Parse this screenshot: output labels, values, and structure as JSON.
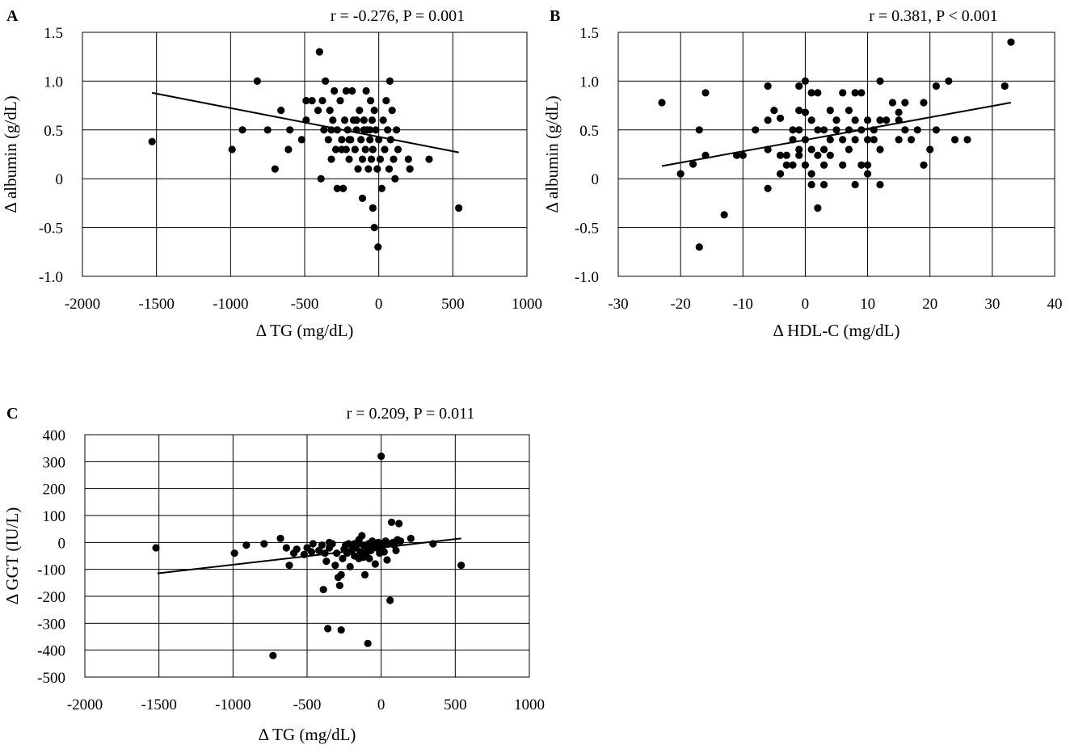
{
  "chart_data": [
    {
      "id": "A",
      "type": "scatter",
      "panel_label": "A",
      "title": "r = -0.276, P = 0.001",
      "xlabel": "Δ TG (mg/dL)",
      "ylabel": "Δ albumin (g/dL)",
      "xlim": [
        -2000,
        1000
      ],
      "ylim": [
        -1.0,
        1.5
      ],
      "x_ticks": [
        -2000,
        -1500,
        -1000,
        -500,
        0,
        500,
        1000
      ],
      "x_tick_labels": [
        "-2000",
        "-1500",
        "-1000",
        "-500",
        "0",
        "500",
        "1000"
      ],
      "y_ticks": [
        1.5,
        1.0,
        0.5,
        0,
        -0.5,
        -1.0
      ],
      "y_tick_labels": [
        "1.5",
        "1.0",
        "0.5",
        "0",
        "-0.5",
        "-1.0"
      ],
      "grid": true,
      "trendline": {
        "x": [
          -1530,
          540
        ],
        "y": [
          0.88,
          0.27
        ]
      },
      "points": [
        [
          -1530,
          0.38
        ],
        [
          -990,
          0.3
        ],
        [
          -920,
          0.5
        ],
        [
          -820,
          1.0
        ],
        [
          -750,
          0.5
        ],
        [
          -700,
          0.1
        ],
        [
          -660,
          0.7
        ],
        [
          -610,
          0.3
        ],
        [
          -600,
          0.5
        ],
        [
          -520,
          0.4
        ],
        [
          -490,
          0.6
        ],
        [
          -490,
          0.8
        ],
        [
          -450,
          0.8
        ],
        [
          -410,
          0.7
        ],
        [
          -400,
          1.3
        ],
        [
          -380,
          0.8
        ],
        [
          -370,
          0.5
        ],
        [
          -390,
          0.0
        ],
        [
          -360,
          1.0
        ],
        [
          -340,
          0.4
        ],
        [
          -330,
          0.7
        ],
        [
          -320,
          0.5
        ],
        [
          -310,
          0.6
        ],
        [
          -300,
          0.9
        ],
        [
          -290,
          0.3
        ],
        [
          -280,
          -0.1
        ],
        [
          -280,
          0.5
        ],
        [
          -260,
          0.8
        ],
        [
          -250,
          0.4
        ],
        [
          -240,
          -0.1
        ],
        [
          -230,
          0.6
        ],
        [
          -220,
          0.3
        ],
        [
          -220,
          0.9
        ],
        [
          -210,
          0.5
        ],
        [
          -200,
          0.2
        ],
        [
          -190,
          0.4
        ],
        [
          -180,
          0.9
        ],
        [
          -170,
          0.6
        ],
        [
          -160,
          0.3
        ],
        [
          -150,
          0.5
        ],
        [
          -140,
          0.1
        ],
        [
          -130,
          0.7
        ],
        [
          -120,
          0.4
        ],
        [
          -110,
          -0.2
        ],
        [
          -110,
          0.2
        ],
        [
          -100,
          0.6
        ],
        [
          -90,
          0.3
        ],
        [
          -85,
          0.9
        ],
        [
          -80,
          0.5
        ],
        [
          -70,
          0.1
        ],
        [
          -60,
          0.4
        ],
        [
          -55,
          0.8
        ],
        [
          -50,
          0.2
        ],
        [
          -45,
          0.6
        ],
        [
          -40,
          0.3
        ],
        [
          -30,
          -0.5
        ],
        [
          -30,
          0.7
        ],
        [
          -20,
          0.5
        ],
        [
          -10,
          0.1
        ],
        [
          -5,
          -0.7
        ],
        [
          0,
          0.4
        ],
        [
          10,
          0.2
        ],
        [
          20,
          -0.1
        ],
        [
          30,
          0.6
        ],
        [
          40,
          0.3
        ],
        [
          50,
          0.8
        ],
        [
          60,
          0.5
        ],
        [
          70,
          0.1
        ],
        [
          75,
          1.0
        ],
        [
          80,
          0.4
        ],
        [
          90,
          0.7
        ],
        [
          100,
          0.2
        ],
        [
          110,
          0.0
        ],
        [
          120,
          0.5
        ],
        [
          130,
          0.3
        ],
        [
          200,
          0.2
        ],
        [
          210,
          0.1
        ],
        [
          340,
          0.2
        ],
        [
          540,
          -0.3
        ],
        [
          -40,
          -0.3
        ],
        [
          -100,
          0.5
        ],
        [
          -150,
          0.6
        ],
        [
          -200,
          0.4
        ],
        [
          -60,
          0.5
        ],
        [
          -250,
          0.3
        ],
        [
          -320,
          0.2
        ]
      ]
    },
    {
      "id": "B",
      "type": "scatter",
      "panel_label": "B",
      "title": "r = 0.381, P < 0.001",
      "xlabel": "Δ HDL-C (mg/dL)",
      "ylabel": "Δ albumin (g/dL)",
      "xlim": [
        -30,
        40
      ],
      "ylim": [
        -1.0,
        1.5
      ],
      "x_ticks": [
        -30,
        -20,
        -10,
        0,
        10,
        20,
        30,
        40
      ],
      "x_tick_labels": [
        "-30",
        "-20",
        "-10",
        "0",
        "10",
        "20",
        "30",
        "40"
      ],
      "y_ticks": [
        1.5,
        1.0,
        0.5,
        0,
        -0.5,
        -1.0
      ],
      "y_tick_labels": [
        "1.5",
        "1.0",
        "0.5",
        "0",
        "-0.5",
        "-1.0"
      ],
      "grid": true,
      "trendline": {
        "x": [
          -23,
          33
        ],
        "y": [
          0.13,
          0.78
        ]
      },
      "points": [
        [
          -23,
          0.78
        ],
        [
          -20,
          0.05
        ],
        [
          -18,
          0.15
        ],
        [
          -17,
          0.5
        ],
        [
          -17,
          -0.7
        ],
        [
          -16,
          0.88
        ],
        [
          -16,
          0.24
        ],
        [
          -13,
          -0.37
        ],
        [
          -11,
          0.24
        ],
        [
          -10,
          0.24
        ],
        [
          -8,
          0.5
        ],
        [
          -6,
          0.95
        ],
        [
          -6,
          0.6
        ],
        [
          -6,
          0.3
        ],
        [
          -6,
          -0.1
        ],
        [
          -5,
          0.7
        ],
        [
          -4,
          0.62
        ],
        [
          -4,
          0.24
        ],
        [
          -4,
          0.05
        ],
        [
          -3,
          0.14
        ],
        [
          -3,
          0.24
        ],
        [
          -2,
          0.4
        ],
        [
          -2,
          0.5
        ],
        [
          -2,
          0.14
        ],
        [
          -1,
          0.95
        ],
        [
          -1,
          0.7
        ],
        [
          -1,
          0.5
        ],
        [
          -1,
          0.3
        ],
        [
          -1,
          0.24
        ],
        [
          0,
          1.0
        ],
        [
          0,
          0.68
        ],
        [
          0,
          0.4
        ],
        [
          0,
          0.14
        ],
        [
          1,
          0.88
        ],
        [
          1,
          0.6
        ],
        [
          1,
          0.3
        ],
        [
          1,
          0.05
        ],
        [
          1,
          -0.06
        ],
        [
          2,
          0.88
        ],
        [
          2,
          0.5
        ],
        [
          2,
          0.24
        ],
        [
          2,
          -0.3
        ],
        [
          3,
          0.5
        ],
        [
          3,
          0.3
        ],
        [
          3,
          0.14
        ],
        [
          3,
          -0.06
        ],
        [
          4,
          0.7
        ],
        [
          4,
          0.4
        ],
        [
          4,
          0.24
        ],
        [
          5,
          0.6
        ],
        [
          5,
          0.5
        ],
        [
          6,
          0.88
        ],
        [
          6,
          0.4
        ],
        [
          6,
          0.14
        ],
        [
          7,
          0.7
        ],
        [
          7,
          0.5
        ],
        [
          7,
          0.3
        ],
        [
          8,
          0.88
        ],
        [
          8,
          0.6
        ],
        [
          8,
          0.4
        ],
        [
          8,
          -0.06
        ],
        [
          9,
          0.88
        ],
        [
          9,
          0.5
        ],
        [
          9,
          0.14
        ],
        [
          10,
          0.6
        ],
        [
          10,
          0.4
        ],
        [
          10,
          0.05
        ],
        [
          10,
          0.14
        ],
        [
          11,
          0.5
        ],
        [
          11,
          0.4
        ],
        [
          12,
          1.0
        ],
        [
          12,
          0.6
        ],
        [
          12,
          0.3
        ],
        [
          12,
          -0.06
        ],
        [
          13,
          0.6
        ],
        [
          14,
          0.78
        ],
        [
          15,
          0.68
        ],
        [
          15,
          0.6
        ],
        [
          15,
          0.4
        ],
        [
          16,
          0.78
        ],
        [
          16,
          0.5
        ],
        [
          17,
          0.4
        ],
        [
          18,
          0.5
        ],
        [
          19,
          0.78
        ],
        [
          19,
          0.14
        ],
        [
          20,
          0.3
        ],
        [
          21,
          0.95
        ],
        [
          21,
          0.5
        ],
        [
          23,
          1.0
        ],
        [
          24,
          0.4
        ],
        [
          26,
          0.4
        ],
        [
          32,
          0.95
        ],
        [
          33,
          1.4
        ]
      ]
    },
    {
      "id": "C",
      "type": "scatter",
      "panel_label": "C",
      "title": "r = 0.209, P = 0.011",
      "xlabel": "Δ TG (mg/dL)",
      "ylabel": "Δ GGT (IU/L)",
      "xlim": [
        -2000,
        1000
      ],
      "ylim": [
        -500,
        400
      ],
      "x_ticks": [
        -2000,
        -1500,
        -1000,
        -500,
        0,
        500,
        1000
      ],
      "x_tick_labels": [
        "-2000",
        "-1500",
        "-1000",
        "-500",
        "0",
        "500",
        "1000"
      ],
      "y_ticks": [
        400,
        300,
        200,
        100,
        0,
        -100,
        -200,
        -300,
        -400,
        -500
      ],
      "y_tick_labels": [
        "400",
        "300",
        "200",
        "100",
        "0",
        "-100",
        "-200",
        "-300",
        "-400",
        "-500"
      ],
      "grid": true,
      "trendline": {
        "x": [
          -1510,
          540
        ],
        "y": [
          -115,
          15
        ]
      },
      "points": [
        [
          -1520,
          -20
        ],
        [
          -990,
          -40
        ],
        [
          -910,
          -10
        ],
        [
          -790,
          -5
        ],
        [
          -730,
          -420
        ],
        [
          -680,
          15
        ],
        [
          -640,
          -20
        ],
        [
          -620,
          -85
        ],
        [
          -590,
          -40
        ],
        [
          -570,
          -25
        ],
        [
          -520,
          -45
        ],
        [
          -500,
          -20
        ],
        [
          -470,
          -35
        ],
        [
          -460,
          -5
        ],
        [
          -420,
          -30
        ],
        [
          -400,
          -10
        ],
        [
          -390,
          -175
        ],
        [
          -380,
          -40
        ],
        [
          -370,
          -70
        ],
        [
          -360,
          -320
        ],
        [
          -350,
          -20
        ],
        [
          -330,
          -5
        ],
        [
          -310,
          -85
        ],
        [
          -300,
          -40
        ],
        [
          -290,
          -130
        ],
        [
          -280,
          -160
        ],
        [
          -270,
          -120
        ],
        [
          -270,
          -325
        ],
        [
          -260,
          -60
        ],
        [
          -250,
          -25
        ],
        [
          -240,
          -10
        ],
        [
          -230,
          -40
        ],
        [
          -220,
          -5
        ],
        [
          -210,
          -90
        ],
        [
          -200,
          -30
        ],
        [
          -190,
          -15
        ],
        [
          -180,
          -50
        ],
        [
          -170,
          -20
        ],
        [
          -160,
          -5
        ],
        [
          -150,
          -60
        ],
        [
          -140,
          -35
        ],
        [
          -130,
          25
        ],
        [
          -120,
          -10
        ],
        [
          -110,
          -120
        ],
        [
          -100,
          -40
        ],
        [
          -95,
          -15
        ],
        [
          -90,
          -375
        ],
        [
          -85,
          -5
        ],
        [
          -80,
          -60
        ],
        [
          -70,
          -30
        ],
        [
          -60,
          5
        ],
        [
          -50,
          -10
        ],
        [
          -40,
          -80
        ],
        [
          -30,
          -20
        ],
        [
          -20,
          0
        ],
        [
          -10,
          -40
        ],
        [
          0,
          320
        ],
        [
          5,
          -15
        ],
        [
          10,
          -5
        ],
        [
          20,
          -35
        ],
        [
          30,
          5
        ],
        [
          40,
          -65
        ],
        [
          50,
          -5
        ],
        [
          60,
          -215
        ],
        [
          70,
          75
        ],
        [
          80,
          0
        ],
        [
          90,
          -10
        ],
        [
          100,
          -30
        ],
        [
          110,
          10
        ],
        [
          120,
          70
        ],
        [
          130,
          5
        ],
        [
          200,
          15
        ],
        [
          350,
          -5
        ],
        [
          540,
          -85
        ],
        [
          -350,
          0
        ],
        [
          -150,
          10
        ],
        [
          -60,
          -20
        ],
        [
          -120,
          -55
        ],
        [
          -220,
          -35
        ],
        [
          -180,
          -5
        ]
      ]
    }
  ]
}
